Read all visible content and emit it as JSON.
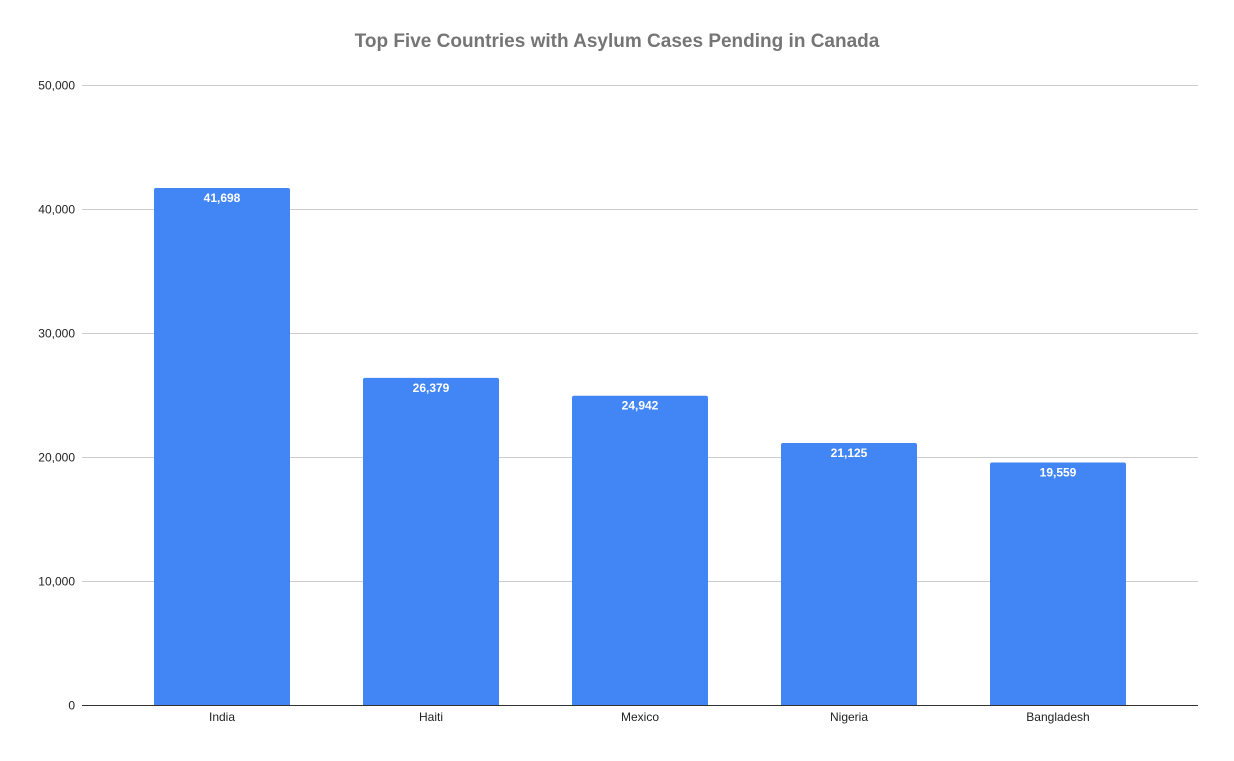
{
  "chart_data": {
    "type": "bar",
    "title": "Top Five Countries with Asylum Cases Pending in Canada",
    "xlabel": "",
    "ylabel": "",
    "categories": [
      "India",
      "Haiti",
      "Mexico",
      "Nigeria",
      "Bangladesh"
    ],
    "values": [
      41698,
      26379,
      24942,
      21125,
      19559
    ],
    "data_labels": [
      "41,698",
      "26,379",
      "24,942",
      "21,125",
      "19,559"
    ],
    "ylim": [
      0,
      50000
    ],
    "yticks": [
      0,
      10000,
      20000,
      30000,
      40000,
      50000
    ],
    "ytick_labels": [
      "0",
      "10,000",
      "20,000",
      "30,000",
      "40,000",
      "50,000"
    ],
    "grid": true,
    "legend": "none",
    "bar_color": "#4285f4",
    "gridline_color": "#cccccc",
    "title_color": "#757575"
  }
}
